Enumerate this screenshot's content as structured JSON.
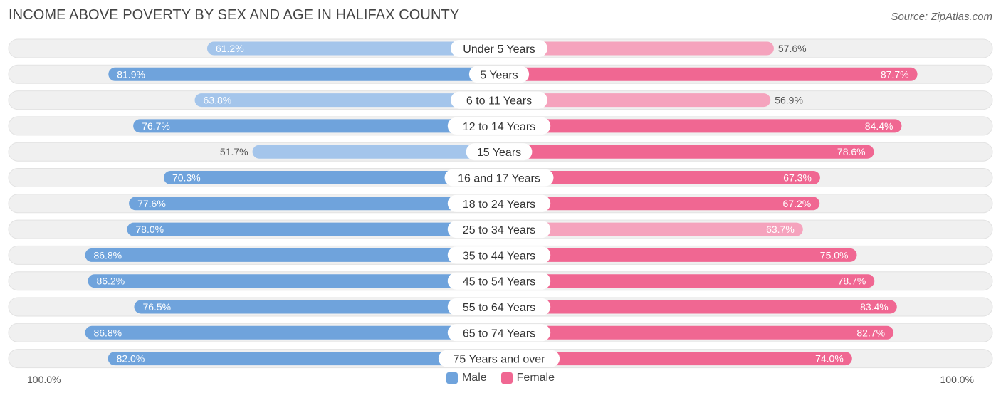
{
  "title": "INCOME ABOVE POVERTY BY SEX AND AGE IN HALIFAX COUNTY",
  "source": "Source: ZipAtlas.com",
  "axis": {
    "left_label": "100.0%",
    "right_label": "100.0%"
  },
  "legend": [
    {
      "name": "Male",
      "color": "#6fa3dc"
    },
    {
      "name": "Female",
      "color": "#f06792"
    }
  ],
  "colors": {
    "male_strong": "#6fa3dc",
    "male_light": "#a4c5eb",
    "female_strong": "#f06792",
    "female_light": "#f5a3bd",
    "row_bg": "#f0f0f0"
  },
  "chart_data": {
    "type": "bar",
    "orientation": "diverging-horizontal",
    "title": "INCOME ABOVE POVERTY BY SEX AND AGE IN HALIFAX COUNTY",
    "categories": [
      "Under 5 Years",
      "5 Years",
      "6 to 11 Years",
      "12 to 14 Years",
      "15 Years",
      "16 and 17 Years",
      "18 to 24 Years",
      "25 to 34 Years",
      "35 to 44 Years",
      "45 to 54 Years",
      "55 to 64 Years",
      "65 to 74 Years",
      "75 Years and over"
    ],
    "series": [
      {
        "name": "Male",
        "values": [
          61.2,
          81.9,
          63.8,
          76.7,
          51.7,
          70.3,
          77.6,
          78.0,
          86.8,
          86.2,
          76.5,
          86.8,
          82.0
        ]
      },
      {
        "name": "Female",
        "values": [
          57.6,
          87.7,
          56.9,
          84.4,
          78.6,
          67.3,
          67.2,
          63.7,
          75.0,
          78.7,
          83.4,
          82.7,
          74.0
        ]
      }
    ],
    "value_labels": {
      "Male": [
        "61.2%",
        "81.9%",
        "63.8%",
        "76.7%",
        "51.7%",
        "70.3%",
        "77.6%",
        "78.0%",
        "86.8%",
        "86.2%",
        "76.5%",
        "86.8%",
        "82.0%"
      ],
      "Female": [
        "57.6%",
        "87.7%",
        "56.9%",
        "84.4%",
        "78.6%",
        "67.3%",
        "67.2%",
        "63.7%",
        "75.0%",
        "78.7%",
        "83.4%",
        "82.7%",
        "74.0%"
      ]
    },
    "xlim": [
      0,
      100
    ],
    "legend_position": "bottom-center"
  }
}
